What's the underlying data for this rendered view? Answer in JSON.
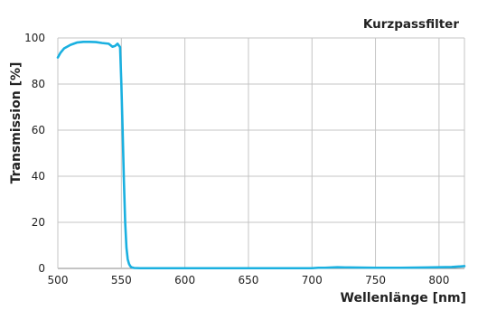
{
  "chart_data": {
    "type": "line",
    "title": "Kurzpassfilter",
    "xlabel": "Wellenlänge [nm]",
    "ylabel": "Transmission [%]",
    "xlim": [
      500,
      820
    ],
    "ylim": [
      0,
      100
    ],
    "x_ticks": [
      "500",
      "550",
      "600",
      "650",
      "700",
      "750",
      "800"
    ],
    "y_ticks": [
      "0",
      "20",
      "40",
      "60",
      "80",
      "100"
    ],
    "grid": true,
    "color": "#1ab0e0",
    "series": [
      {
        "x": [
          500,
          502,
          505,
          510,
          515,
          520,
          525,
          530,
          535,
          540,
          543,
          545,
          547,
          549,
          550,
          551,
          552,
          553,
          554,
          555,
          556,
          557,
          558,
          560,
          565,
          600,
          650,
          700,
          705,
          710,
          720,
          730,
          750,
          770,
          790,
          800,
          810,
          815,
          820
        ],
        "y": [
          91.5,
          93.5,
          95.5,
          97,
          98,
          98.3,
          98.3,
          98.2,
          97.8,
          97.5,
          96.2,
          96.5,
          97.5,
          96,
          80,
          60,
          38,
          20,
          9,
          4,
          2,
          1,
          0.5,
          0.2,
          0.1,
          0.1,
          0.1,
          0.1,
          0.3,
          0.3,
          0.5,
          0.4,
          0.3,
          0.3,
          0.4,
          0.5,
          0.6,
          0.8,
          1.0
        ]
      }
    ]
  }
}
